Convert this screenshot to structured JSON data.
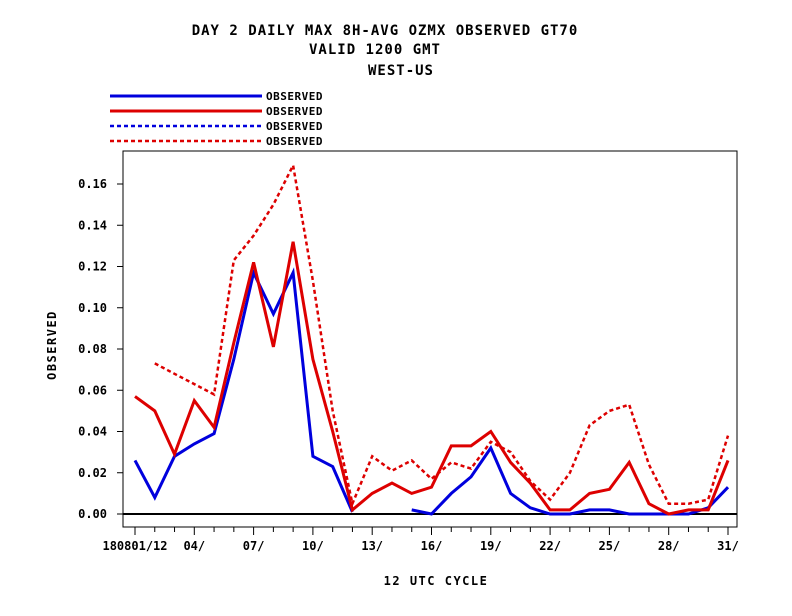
{
  "chart_data": {
    "type": "line",
    "title_lines": [
      "DAY 2 DAILY MAX   8H-AVG OZMX OBSERVED GT70",
      "VALID 1200 GMT",
      "WEST-US"
    ],
    "xlabel": "12 UTC CYCLE",
    "ylabel": "OBSERVED",
    "ylim": [
      0,
      0.18
    ],
    "yticks": [
      0.0,
      0.02,
      0.04,
      0.06,
      0.08,
      0.1,
      0.12,
      0.14,
      0.16
    ],
    "ytick_labels": [
      "0.00",
      "0.02",
      "0.04",
      "0.06",
      "0.08",
      "0.10",
      "0.12",
      "0.14",
      "0.16"
    ],
    "x": [
      1,
      2,
      3,
      4,
      5,
      6,
      7,
      8,
      9,
      10,
      11,
      12,
      13,
      14,
      15,
      16,
      17,
      18,
      19,
      20,
      21,
      22,
      23,
      24,
      25,
      26,
      27,
      28,
      29,
      30,
      31
    ],
    "xlim": [
      0.3,
      31.5
    ],
    "xticks": [
      1,
      4,
      7,
      10,
      13,
      16,
      19,
      22,
      25,
      28,
      31
    ],
    "xtick_labels": [
      "180801/12",
      "04/",
      "07/",
      "10/",
      "13/",
      "16/",
      "19/",
      "22/",
      "25/",
      "28/",
      "31/"
    ],
    "legend_position": "top-left",
    "series": [
      {
        "name": "OBSERVED",
        "color": "#0000dd",
        "dash": "solid",
        "values": [
          0.026,
          0.008,
          0.028,
          0.034,
          0.039,
          0.075,
          0.117,
          0.097,
          0.117,
          0.028,
          0.023,
          0.001,
          null,
          null,
          0.002,
          0.0,
          0.01,
          0.018,
          0.032,
          0.01,
          0.003,
          0.0,
          0.0,
          0.002,
          0.002,
          0.0,
          0.0,
          0.0,
          0.0,
          0.003,
          0.013
        ]
      },
      {
        "name": "OBSERVED",
        "color": "#dd0000",
        "dash": "solid",
        "values": [
          0.057,
          0.05,
          0.029,
          0.055,
          0.042,
          0.083,
          0.122,
          0.081,
          0.132,
          0.075,
          0.04,
          0.002,
          0.01,
          0.015,
          0.01,
          0.013,
          0.033,
          0.033,
          0.04,
          0.025,
          0.015,
          0.002,
          0.002,
          0.01,
          0.012,
          0.025,
          0.005,
          0.0,
          0.002,
          0.002,
          0.026
        ]
      },
      {
        "name": "OBSERVED",
        "color": "#0000dd",
        "dash": "dashed",
        "values": [
          null,
          null,
          null,
          null,
          null,
          null,
          null,
          null,
          null,
          null,
          null,
          null,
          null,
          null,
          null,
          null,
          null,
          null,
          null,
          null,
          null,
          null,
          null,
          null,
          null,
          null,
          null,
          null,
          null,
          null,
          null
        ]
      },
      {
        "name": "OBSERVED",
        "color": "#dd0000",
        "dash": "dashed",
        "values": [
          null,
          0.073,
          0.068,
          0.063,
          0.058,
          0.123,
          0.135,
          0.15,
          0.169,
          0.113,
          0.05,
          0.005,
          0.028,
          0.021,
          0.026,
          0.017,
          0.025,
          0.022,
          0.035,
          0.03,
          0.016,
          0.007,
          0.02,
          0.043,
          0.05,
          0.053,
          0.024,
          0.005,
          0.005,
          0.007,
          0.038
        ]
      }
    ]
  }
}
